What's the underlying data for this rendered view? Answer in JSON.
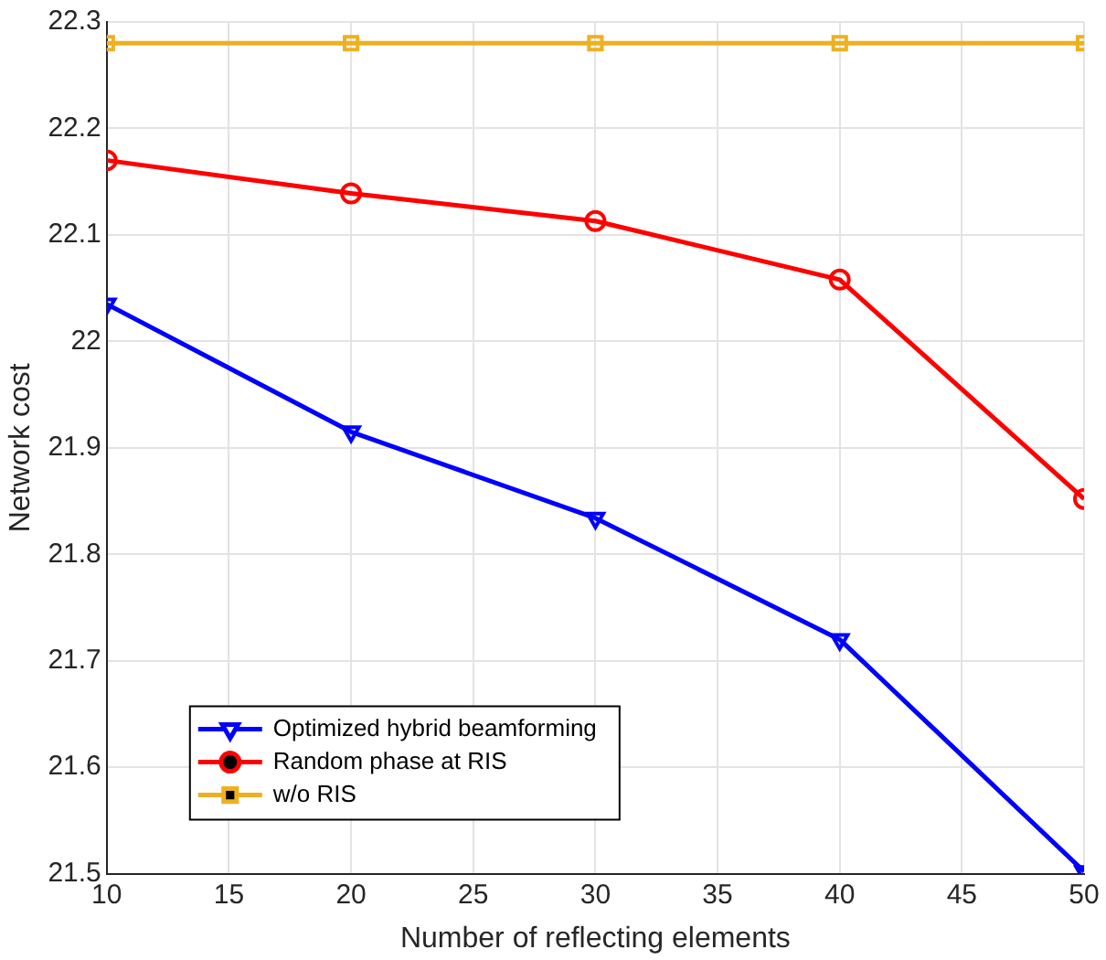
{
  "chart_data": {
    "type": "line",
    "xlabel": "Number of reflecting elements",
    "ylabel": "Network cost",
    "x": [
      10,
      20,
      30,
      40,
      50
    ],
    "series": [
      {
        "name": "Optimized hybrid beamforming",
        "color": "#0000ff",
        "marker": "triangle",
        "values": [
          22.035,
          21.915,
          21.834,
          21.72,
          21.502
        ]
      },
      {
        "name": "Random phase at RIS",
        "color": "#ff0000",
        "marker": "circle",
        "values": [
          22.17,
          22.139,
          22.113,
          22.058,
          21.852
        ]
      },
      {
        "name": "w/o RIS",
        "color": "#edb120",
        "marker": "square",
        "values": [
          22.28,
          22.28,
          22.28,
          22.28,
          22.28
        ]
      }
    ],
    "xlim": [
      10,
      50
    ],
    "xticks": [
      10,
      15,
      20,
      25,
      30,
      35,
      40,
      45,
      50
    ],
    "ylim": [
      21.5,
      22.3
    ],
    "yticks": [
      21.5,
      21.6,
      21.7,
      21.8,
      21.9,
      22,
      22.1,
      22.2,
      22.3
    ],
    "grid": true,
    "legend": "bottom left",
    "line_style": "solid"
  }
}
